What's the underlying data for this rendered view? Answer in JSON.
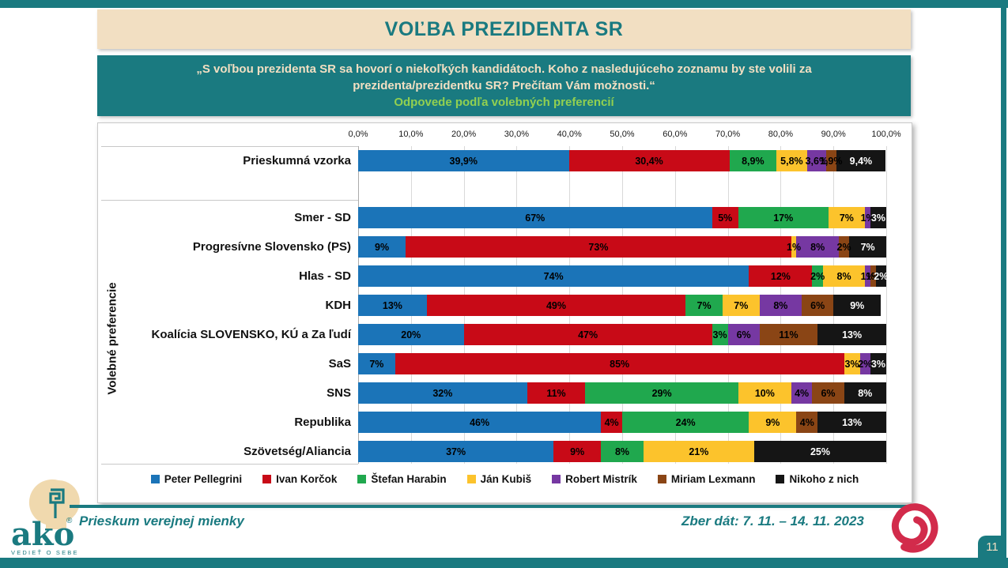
{
  "frame": {
    "page_number": "11"
  },
  "title": "VOĽBA PREZIDENTA SR",
  "subtitle": {
    "quote": "„S voľbou prezidenta SR sa hovorí o niekoľkých kandidátoch. Koho z nasledujúceho zoznamu by ste volili za prezidenta/prezidentku SR? Prečítam Vám možnosti.“",
    "highlight": "Odpovede podľa volebných preferencií"
  },
  "footer": {
    "left_text": "Prieskum verejnej mienky",
    "right_text": "Zber dát: 7. 11. – 14. 11. 2023",
    "logo": {
      "name": "ako",
      "reg": "®",
      "tagline": "VEDIEŤ O SEBE"
    }
  },
  "chart_data": {
    "type": "bar",
    "stacked": true,
    "orientation": "horizontal",
    "title": "",
    "ylabel": "Volebné preferencie",
    "xlim": [
      0,
      100
    ],
    "grid": true,
    "legend_position": "bottom",
    "axis_ticks": [
      "0,0%",
      "10,0%",
      "20,0%",
      "30,0%",
      "40,0%",
      "50,0%",
      "60,0%",
      "70,0%",
      "80,0%",
      "90,0%",
      "100,0%"
    ],
    "categories": [
      "Prieskumná vzorka",
      "Smer - SD",
      "Progresívne Slovensko (PS)",
      "Hlas - SD",
      "KDH",
      "Koalícia SLOVENSKO, KÚ a Za ľudí",
      "SaS",
      "SNS",
      "Republika",
      "Szövetség/Aliancia"
    ],
    "series": [
      {
        "name": "Peter Pellegrini",
        "color": "#1B74B8",
        "label_color": "#000000",
        "values": [
          39.9,
          67,
          9,
          74,
          13,
          20,
          7,
          32,
          46,
          37
        ],
        "labels": [
          "39,9%",
          "67%",
          "9%",
          "74%",
          "13%",
          "20%",
          "7%",
          "32%",
          "46%",
          "37%"
        ]
      },
      {
        "name": "Ivan Korčok",
        "color": "#C80A17",
        "label_color": "#000000",
        "values": [
          30.4,
          5,
          73,
          12,
          49,
          47,
          85,
          11,
          4,
          9
        ],
        "labels": [
          "30,4%",
          "5%",
          "73%",
          "12%",
          "49%",
          "47%",
          "85%",
          "11%",
          "4%",
          "9%"
        ]
      },
      {
        "name": "Štefan Harabin",
        "color": "#20A84E",
        "label_color": "#000000",
        "values": [
          8.9,
          17,
          0,
          2,
          7,
          3,
          0,
          29,
          24,
          8
        ],
        "labels": [
          "8,9%",
          "17%",
          "",
          "2%",
          "7%",
          "3%",
          "",
          "29%",
          "24%",
          "8%"
        ]
      },
      {
        "name": "Ján Kubiš",
        "color": "#FCC32C",
        "label_color": "#000000",
        "values": [
          5.8,
          7,
          1,
          8,
          7,
          0,
          3,
          10,
          9,
          21
        ],
        "labels": [
          "5,8%",
          "7%",
          "1%",
          "8%",
          "7%",
          "",
          "3%",
          "10%",
          "9%",
          "21%"
        ]
      },
      {
        "name": "Robert Mistrík",
        "color": "#7638A2",
        "label_color": "#000000",
        "values": [
          3.6,
          1,
          8,
          1,
          8,
          6,
          2,
          4,
          0,
          0
        ],
        "labels": [
          "3,6%",
          "1%",
          "8%",
          "1%",
          "8%",
          "6%",
          "2%",
          "4%",
          "",
          ""
        ]
      },
      {
        "name": "Miriam Lexmann",
        "color": "#8A4515",
        "label_color": "#000000",
        "values": [
          1.9,
          0,
          2,
          1,
          6,
          11,
          0,
          6,
          4,
          0
        ],
        "labels": [
          "1,9%",
          "",
          "2%",
          "1%",
          "6%",
          "11%",
          "",
          "6%",
          "4%",
          ""
        ]
      },
      {
        "name": "Nikoho z nich",
        "color": "#151515",
        "label_color": "#FFFFFF",
        "values": [
          9.4,
          3,
          7,
          2,
          9,
          13,
          3,
          8,
          13,
          25
        ],
        "labels": [
          "9,4%",
          "3%",
          "7%",
          "2%",
          "9%",
          "13%",
          "3%",
          "8%",
          "13%",
          "25%"
        ]
      }
    ]
  }
}
